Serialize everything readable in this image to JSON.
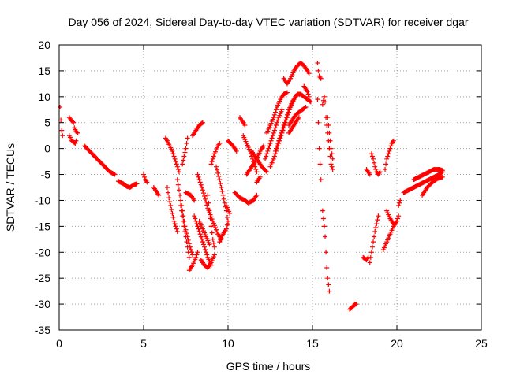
{
  "chart_data": {
    "type": "scatter",
    "title": "Day 056 of 2024, Sidereal Day-to-day VTEC variation (SDTVAR) for receiver dgar",
    "xlabel": "GPS time / hours",
    "ylabel": "SDTVAR / TECUs",
    "xlim": [
      0,
      25
    ],
    "ylim": [
      -35,
      20
    ],
    "xticks": [
      0,
      5,
      10,
      15,
      20,
      25
    ],
    "yticks": [
      -35,
      -30,
      -25,
      -20,
      -15,
      -10,
      -5,
      0,
      5,
      10,
      15,
      20
    ],
    "grid": true,
    "marker": "+",
    "color": "#ff0000",
    "segments": [
      [
        [
          0.05,
          8.0
        ],
        [
          0.1,
          5.5
        ],
        [
          0.15,
          3.5
        ],
        [
          0.2,
          2.5
        ]
      ],
      [
        [
          0.6,
          6.0
        ],
        [
          0.7,
          5.5
        ],
        [
          0.85,
          5.0
        ],
        [
          0.9,
          4.0
        ],
        [
          1.0,
          3.3
        ],
        [
          1.1,
          3.0
        ]
      ],
      [
        [
          0.6,
          2.5
        ],
        [
          0.75,
          1.5
        ],
        [
          0.95,
          1.0
        ],
        [
          1.0,
          1.5
        ]
      ],
      [
        [
          1.5,
          0.5
        ],
        [
          1.8,
          -0.5
        ],
        [
          2.1,
          -1.5
        ],
        [
          2.4,
          -2.5
        ],
        [
          2.7,
          -3.5
        ],
        [
          3.0,
          -4.5
        ],
        [
          3.3,
          -5.0
        ]
      ],
      [
        [
          3.5,
          -6.3
        ],
        [
          3.8,
          -6.8
        ],
        [
          4.0,
          -7.3
        ],
        [
          4.2,
          -7.5
        ],
        [
          4.4,
          -7.0
        ],
        [
          4.6,
          -6.8
        ]
      ],
      [
        [
          5.0,
          -5.0
        ],
        [
          5.1,
          -6.0
        ],
        [
          5.2,
          -6.5
        ]
      ],
      [
        [
          5.6,
          -7.5
        ],
        [
          5.8,
          -8.5
        ],
        [
          5.9,
          -9.0
        ]
      ],
      [
        [
          6.3,
          2.0
        ],
        [
          6.4,
          1.5
        ],
        [
          6.55,
          0.5
        ],
        [
          6.7,
          -0.5
        ],
        [
          6.85,
          -2.0
        ],
        [
          7.0,
          -3.5
        ],
        [
          7.1,
          -4.5
        ]
      ],
      [
        [
          6.4,
          -7.5
        ],
        [
          6.5,
          -9.5
        ],
        [
          6.6,
          -11.0
        ],
        [
          6.7,
          -12.5
        ],
        [
          6.8,
          -14.0
        ],
        [
          6.9,
          -15.0
        ],
        [
          7.0,
          -16.0
        ]
      ],
      [
        [
          7.0,
          -6.0
        ],
        [
          7.15,
          -9.0
        ],
        [
          7.3,
          -12.0
        ],
        [
          7.45,
          -15.0
        ],
        [
          7.6,
          -17.0
        ],
        [
          7.75,
          -19.0
        ],
        [
          7.9,
          -20.5
        ]
      ],
      [
        [
          7.2,
          -11.0
        ],
        [
          7.35,
          -14.0
        ],
        [
          7.5,
          -17.0
        ],
        [
          7.6,
          -19.0
        ],
        [
          7.7,
          -21.0
        ]
      ],
      [
        [
          7.3,
          -3.0
        ],
        [
          7.4,
          -1.5
        ],
        [
          7.5,
          0
        ],
        [
          7.6,
          2.0
        ]
      ],
      [
        [
          7.5,
          -8.5
        ],
        [
          7.8,
          -9.0
        ],
        [
          8.0,
          -10.0
        ]
      ],
      [
        [
          7.7,
          -23.5
        ],
        [
          7.9,
          -22.5
        ],
        [
          8.1,
          -21.0
        ],
        [
          8.2,
          -20.0
        ]
      ],
      [
        [
          7.9,
          2.5
        ],
        [
          8.1,
          3.5
        ],
        [
          8.3,
          4.5
        ],
        [
          8.5,
          5.0
        ]
      ],
      [
        [
          8.0,
          -13.0
        ],
        [
          8.2,
          -15.0
        ],
        [
          8.4,
          -17.0
        ],
        [
          8.6,
          -19.0
        ],
        [
          8.8,
          -21.0
        ],
        [
          9.0,
          -22.5
        ]
      ],
      [
        [
          8.3,
          -14.0
        ],
        [
          8.5,
          -15.5
        ],
        [
          8.7,
          -17.0
        ],
        [
          8.9,
          -18.5
        ]
      ],
      [
        [
          8.4,
          -21.5
        ],
        [
          8.6,
          -22.5
        ],
        [
          8.8,
          -23.0
        ],
        [
          9.0,
          -22.0
        ],
        [
          9.2,
          -20.5
        ]
      ],
      [
        [
          8.8,
          -9.0
        ],
        [
          8.9,
          -12.0
        ],
        [
          9.0,
          -15.0
        ],
        [
          9.1,
          -17.5
        ],
        [
          9.2,
          -19.0
        ]
      ],
      [
        [
          9.0,
          -3.0
        ],
        [
          9.2,
          -1.0
        ],
        [
          9.4,
          0.5
        ],
        [
          9.5,
          1.0
        ]
      ],
      [
        [
          8.2,
          -5.0
        ],
        [
          8.5,
          -8.0
        ],
        [
          8.8,
          -11.5
        ],
        [
          9.1,
          -14.0
        ],
        [
          9.4,
          -16.5
        ],
        [
          9.6,
          -17.5
        ]
      ],
      [
        [
          9.3,
          -3.5
        ],
        [
          9.5,
          -6.0
        ],
        [
          9.7,
          -9.0
        ],
        [
          9.9,
          -12.0
        ],
        [
          10.0,
          -14.5
        ]
      ],
      [
        [
          9.5,
          -18.0
        ],
        [
          9.7,
          -16.5
        ],
        [
          9.9,
          -15.5
        ],
        [
          10.0,
          -14.0
        ]
      ],
      [
        [
          9.9,
          -11.0
        ],
        [
          10.1,
          -12.5
        ]
      ],
      [
        [
          10.0,
          1.5
        ],
        [
          10.3,
          0.5
        ],
        [
          10.5,
          -0.5
        ]
      ],
      [
        [
          10.4,
          -8.5
        ],
        [
          10.7,
          -9.5
        ],
        [
          11.0,
          -10.0
        ],
        [
          11.2,
          -10.5
        ],
        [
          11.5,
          -10.0
        ],
        [
          11.7,
          -9.0
        ]
      ],
      [
        [
          10.7,
          6.0
        ],
        [
          10.8,
          5.5
        ],
        [
          11.0,
          4.5
        ]
      ],
      [
        [
          10.9,
          2.5
        ],
        [
          11.1,
          1.0
        ],
        [
          11.3,
          -0.5
        ],
        [
          11.5,
          -2.5
        ],
        [
          11.7,
          -4.5
        ]
      ],
      [
        [
          11.1,
          -5.0
        ],
        [
          11.3,
          -4.0
        ],
        [
          11.5,
          -3.0
        ],
        [
          11.7,
          -2.0
        ],
        [
          11.9,
          -0.5
        ],
        [
          12.1,
          0.5
        ]
      ],
      [
        [
          11.4,
          -0.5
        ],
        [
          11.6,
          -1.5
        ],
        [
          11.8,
          -2.5
        ],
        [
          12.0,
          -3.5
        ],
        [
          12.3,
          -4.5
        ]
      ],
      [
        [
          11.7,
          -6.5
        ],
        [
          11.9,
          -5.5
        ]
      ],
      [
        [
          12.3,
          3.0
        ],
        [
          12.5,
          4.5
        ],
        [
          12.7,
          6.0
        ],
        [
          12.9,
          8.0
        ],
        [
          13.1,
          9.5
        ],
        [
          13.3,
          10.5
        ],
        [
          13.5,
          10.8
        ]
      ],
      [
        [
          12.5,
          -3.5
        ],
        [
          12.7,
          -2.0
        ],
        [
          12.9,
          0
        ],
        [
          13.1,
          2.0
        ],
        [
          13.3,
          4.0
        ],
        [
          13.5,
          6.0
        ],
        [
          13.7,
          8.0
        ],
        [
          13.9,
          9.5
        ],
        [
          14.1,
          10.5
        ],
        [
          14.3,
          10.5
        ],
        [
          14.5,
          10.0
        ],
        [
          14.7,
          9.5
        ],
        [
          14.9,
          9.0
        ]
      ],
      [
        [
          12.8,
          -0.5
        ],
        [
          13.0,
          1.5
        ],
        [
          13.2,
          3.5
        ],
        [
          13.4,
          5.5
        ],
        [
          13.6,
          7.5
        ],
        [
          13.8,
          9.0
        ],
        [
          14.0,
          10.0
        ]
      ],
      [
        [
          12.2,
          -2.0
        ],
        [
          12.4,
          0
        ],
        [
          12.6,
          2.0
        ],
        [
          12.8,
          4.0
        ],
        [
          13.0,
          6.0
        ],
        [
          13.2,
          7.5
        ]
      ],
      [
        [
          13.3,
          13.5
        ],
        [
          13.5,
          12.5
        ],
        [
          13.7,
          13.5
        ],
        [
          13.9,
          15.0
        ],
        [
          14.1,
          16.0
        ],
        [
          14.3,
          16.5
        ],
        [
          14.5,
          16.0
        ],
        [
          14.7,
          15.0
        ],
        [
          14.8,
          14.5
        ]
      ],
      [
        [
          13.6,
          4.5
        ],
        [
          13.8,
          5.5
        ],
        [
          14.0,
          6.5
        ],
        [
          14.2,
          7.0
        ],
        [
          14.4,
          7.5
        ],
        [
          14.6,
          8.0
        ]
      ],
      [
        [
          13.6,
          3.0
        ],
        [
          13.8,
          4.0
        ],
        [
          14.0,
          5.0
        ],
        [
          14.2,
          6.0
        ]
      ],
      [
        [
          14.5,
          12.0
        ],
        [
          14.7,
          11.0
        ],
        [
          14.8,
          10.0
        ]
      ],
      [
        [
          15.3,
          16.5
        ],
        [
          15.35,
          15.0
        ],
        [
          15.4,
          14.0
        ],
        [
          15.5,
          13.5
        ]
      ],
      [
        [
          15.3,
          9.5
        ],
        [
          15.35,
          5.0
        ],
        [
          15.4,
          0
        ],
        [
          15.45,
          -3.0
        ],
        [
          15.5,
          -6.0
        ]
      ],
      [
        [
          15.6,
          -12.0
        ],
        [
          15.7,
          -15.0
        ],
        [
          15.75,
          -17.0
        ],
        [
          15.8,
          -20.0
        ],
        [
          15.85,
          -23.0
        ],
        [
          15.9,
          -25.0
        ],
        [
          16.0,
          -27.5
        ]
      ],
      [
        [
          15.6,
          8.5
        ],
        [
          15.7,
          10.0
        ],
        [
          15.75,
          9.0
        ],
        [
          15.8,
          6.0
        ],
        [
          15.9,
          3.0
        ],
        [
          16.0,
          0
        ],
        [
          16.1,
          -3.0
        ],
        [
          16.2,
          -4.0
        ]
      ],
      [
        [
          15.9,
          6.0
        ],
        [
          16.0,
          3.0
        ],
        [
          16.1,
          0
        ],
        [
          16.2,
          -2.0
        ]
      ],
      [
        [
          17.2,
          -31.0
        ],
        [
          17.4,
          -30.5
        ],
        [
          17.5,
          -30.0
        ],
        [
          17.6,
          -30.0
        ]
      ],
      [
        [
          18.0,
          -21.0
        ],
        [
          18.2,
          -21.5
        ],
        [
          18.3,
          -21.0
        ]
      ],
      [
        [
          18.2,
          -4.0
        ],
        [
          18.4,
          -5.0
        ]
      ],
      [
        [
          18.4,
          -22.0
        ],
        [
          18.5,
          -20.0
        ],
        [
          18.6,
          -18.0
        ],
        [
          18.7,
          -16.0
        ],
        [
          18.8,
          -14.5
        ],
        [
          18.9,
          -13.0
        ]
      ],
      [
        [
          18.5,
          -1.0
        ],
        [
          18.6,
          -2.0
        ],
        [
          18.7,
          -3.5
        ],
        [
          18.8,
          -4.5
        ],
        [
          18.9,
          -5.0
        ],
        [
          19.0,
          -4.5
        ]
      ],
      [
        [
          19.2,
          -19.5
        ],
        [
          19.4,
          -18.0
        ],
        [
          19.6,
          -16.5
        ],
        [
          19.8,
          -15.0
        ],
        [
          20.0,
          -14.0
        ],
        [
          20.1,
          -13.0
        ]
      ],
      [
        [
          19.3,
          -4.0
        ],
        [
          19.4,
          -2.0
        ],
        [
          19.5,
          -1.0
        ],
        [
          19.6,
          0
        ],
        [
          19.7,
          1.0
        ],
        [
          19.8,
          1.5
        ]
      ],
      [
        [
          19.4,
          -12.0
        ],
        [
          19.6,
          -13.5
        ],
        [
          19.8,
          -14.5
        ]
      ],
      [
        [
          20.1,
          -11.0
        ],
        [
          20.2,
          -10.0
        ]
      ],
      [
        [
          20.4,
          -8.5
        ],
        [
          20.7,
          -8.0
        ],
        [
          21.0,
          -7.5
        ],
        [
          21.3,
          -7.0
        ],
        [
          21.6,
          -6.5
        ],
        [
          21.9,
          -6.0
        ],
        [
          22.2,
          -5.5
        ],
        [
          22.5,
          -5.0
        ],
        [
          22.7,
          -4.5
        ]
      ],
      [
        [
          21.0,
          -6.0
        ],
        [
          21.3,
          -5.5
        ],
        [
          21.6,
          -5.0
        ],
        [
          21.9,
          -4.5
        ],
        [
          22.2,
          -4.0
        ],
        [
          22.5,
          -4.0
        ],
        [
          22.7,
          -4.2
        ]
      ],
      [
        [
          21.5,
          -9.0
        ],
        [
          21.8,
          -7.5
        ],
        [
          22.1,
          -6.5
        ],
        [
          22.4,
          -5.8
        ],
        [
          22.7,
          -5.5
        ]
      ]
    ]
  }
}
